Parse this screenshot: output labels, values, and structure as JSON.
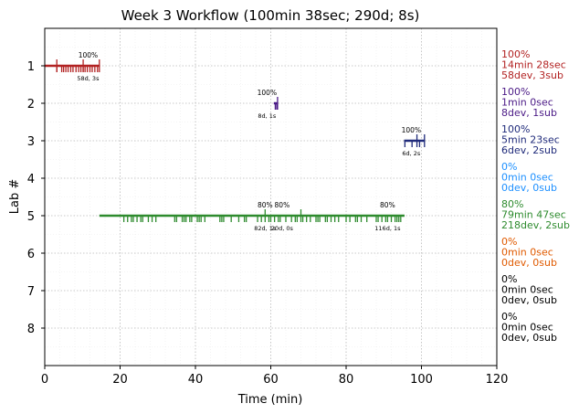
{
  "chart_data": {
    "type": "timeline",
    "title": "Week 3 Workflow (100min 38sec; 290d; 8s)",
    "xlabel": "Time (min)",
    "ylabel": "Lab #",
    "xlim": [
      0,
      120
    ],
    "ylim": [
      9,
      0
    ],
    "xticks": [
      0,
      20,
      40,
      60,
      80,
      100,
      120
    ],
    "yticks": [
      1,
      2,
      3,
      4,
      5,
      6,
      7,
      8
    ],
    "grid": true,
    "labs": [
      {
        "lab": 1,
        "color": "#b22222",
        "summary": [
          "100%",
          "14min 28sec",
          "58dev, 3sub"
        ],
        "start": 0,
        "end": 14.5,
        "ticks": [
          3.2,
          4.5,
          5.0,
          5.6,
          6.2,
          6.9,
          7.5,
          8.3,
          9.0,
          9.6,
          10.2,
          10.7,
          11.3,
          12.0,
          12.6,
          13.3,
          14.0
        ],
        "tall_ticks": [
          3.2,
          10.2,
          14.5
        ],
        "annotations": [
          {
            "x": 11.5,
            "pct": "100%",
            "stats": "58d, 3s"
          }
        ]
      },
      {
        "lab": 2,
        "color": "#4b1a86",
        "summary": [
          "100%",
          "1min 0sec",
          "8dev, 1sub"
        ],
        "start": 60.8,
        "end": 61.8,
        "ticks": [
          61.2,
          61.6
        ],
        "tall_ticks": [
          61.8
        ],
        "annotations": [
          {
            "x": 59.0,
            "pct": "100%",
            "stats": "8d, 1s"
          }
        ]
      },
      {
        "lab": 3,
        "color": "#1f2a7a",
        "summary": [
          "100%",
          "5min 23sec",
          "6dev, 2sub"
        ],
        "start": 95.4,
        "end": 100.8,
        "ticks": [
          95.6,
          97.5,
          99.5
        ],
        "tall_ticks": [
          98.8,
          100.8
        ],
        "annotations": [
          {
            "x": 97.3,
            "pct": "100%",
            "stats": "6d, 2s"
          }
        ]
      },
      {
        "lab": 4,
        "color": "#1e90ff",
        "summary": [
          "0%",
          "0min 0sec",
          "0dev, 0sub"
        ]
      },
      {
        "lab": 5,
        "color": "#2e8b2e",
        "summary": [
          "80%",
          "79min 47sec",
          "218dev, 2sub"
        ],
        "start": 14.5,
        "end": 95.5,
        "ticks": [
          21,
          22,
          23,
          23.5,
          24.5,
          25.5,
          26,
          27.5,
          28.5,
          29.5,
          34.5,
          35,
          36.5,
          37,
          37.5,
          38.5,
          39,
          40.5,
          41,
          41.5,
          42.5,
          46.5,
          47,
          47.5,
          49.5,
          51.5,
          53,
          53.5,
          56.5,
          57.5,
          59.5,
          60,
          61,
          62,
          62.5,
          64,
          65.5,
          66.5,
          67,
          68.5,
          69.5,
          70.5,
          72,
          72.5,
          73,
          74.5,
          75,
          76,
          77,
          78,
          80,
          81,
          82.5,
          83,
          84,
          85.5,
          88,
          88.5,
          89.5,
          90.5,
          91,
          92,
          93,
          93.5,
          94,
          94.5
        ],
        "tall_ticks": [
          58.5,
          68.0
        ],
        "annotations": [
          {
            "x": 58.5,
            "pct": "80%",
            "stats": "82d, 1s"
          },
          {
            "x": 63.0,
            "pct": "80%",
            "stats": "20d, 0s"
          },
          {
            "x": 91.0,
            "pct": "80%",
            "stats": "116d, 1s"
          }
        ]
      },
      {
        "lab": 6,
        "color": "#e05a00",
        "summary": [
          "0%",
          "0min 0sec",
          "0dev, 0sub"
        ]
      },
      {
        "lab": 7,
        "color": "#000000",
        "summary": [
          "0%",
          "0min 0sec",
          "0dev, 0sub"
        ]
      },
      {
        "lab": 8,
        "color": "#000000",
        "summary": [
          "0%",
          "0min 0sec",
          "0dev, 0sub"
        ]
      }
    ]
  }
}
